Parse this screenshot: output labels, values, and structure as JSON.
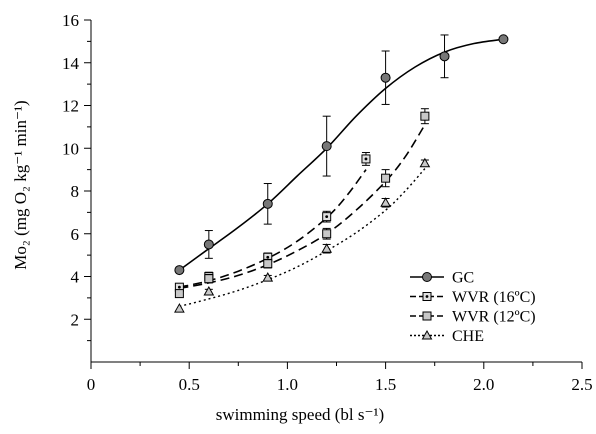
{
  "chart_data": {
    "type": "scatter",
    "x_label": "swimming speed (bl s⁻¹)",
    "y_label": "Mo₂ (mg O₂ kg⁻¹ min⁻¹)",
    "x_range": [
      0,
      2.5
    ],
    "y_range": [
      0,
      16
    ],
    "x_ticks": [
      "0",
      "0.5",
      "1.0",
      "1.5",
      "2.0",
      "2.5"
    ],
    "y_ticks": [
      "2",
      "4",
      "6",
      "8",
      "10",
      "12",
      "14",
      "16"
    ],
    "grid": false,
    "legend_position": "bottom-right",
    "series": [
      {
        "name": "GC",
        "marker": "circle",
        "line_style": "solid",
        "points": [
          {
            "x": 0.45,
            "y": 4.3,
            "err": 0
          },
          {
            "x": 0.6,
            "y": 5.5,
            "err": 0.65
          },
          {
            "x": 0.9,
            "y": 7.4,
            "err": 0.95
          },
          {
            "x": 1.2,
            "y": 10.1,
            "err": 1.4
          },
          {
            "x": 1.5,
            "y": 13.3,
            "err": 1.25
          },
          {
            "x": 1.8,
            "y": 14.3,
            "err": 1.0
          },
          {
            "x": 2.1,
            "y": 15.1,
            "err": 0.1
          }
        ],
        "fit": [
          [
            0.45,
            4.3
          ],
          [
            0.6,
            5.3
          ],
          [
            0.75,
            6.3
          ],
          [
            0.9,
            7.4
          ],
          [
            1.05,
            8.7
          ],
          [
            1.2,
            10.0
          ],
          [
            1.35,
            11.5
          ],
          [
            1.5,
            12.8
          ],
          [
            1.65,
            13.8
          ],
          [
            1.8,
            14.5
          ],
          [
            1.95,
            14.9
          ],
          [
            2.1,
            15.1
          ]
        ]
      },
      {
        "name": "WVR (16ºC)",
        "marker": "square-dot",
        "line_style": "dashed",
        "points": [
          {
            "x": 0.45,
            "y": 3.5,
            "err": 0.15
          },
          {
            "x": 0.6,
            "y": 4.0,
            "err": 0.2
          },
          {
            "x": 0.9,
            "y": 4.9,
            "err": 0.2
          },
          {
            "x": 1.2,
            "y": 6.8,
            "err": 0.25
          },
          {
            "x": 1.4,
            "y": 9.5,
            "err": 0.3
          }
        ],
        "fit": [
          [
            0.45,
            3.5
          ],
          [
            0.6,
            3.8
          ],
          [
            0.75,
            4.25
          ],
          [
            0.9,
            4.85
          ],
          [
            1.05,
            5.65
          ],
          [
            1.2,
            6.75
          ],
          [
            1.3,
            7.75
          ],
          [
            1.4,
            9.0
          ]
        ]
      },
      {
        "name": "WVR (12ºC)",
        "marker": "square",
        "line_style": "dashed",
        "points": [
          {
            "x": 0.45,
            "y": 3.2,
            "err": 0.15
          },
          {
            "x": 0.6,
            "y": 3.9,
            "err": 0.2
          },
          {
            "x": 0.9,
            "y": 4.6,
            "err": 0.2
          },
          {
            "x": 1.2,
            "y": 6.0,
            "err": 0.25
          },
          {
            "x": 1.5,
            "y": 8.6,
            "err": 0.4
          },
          {
            "x": 1.7,
            "y": 11.5,
            "err": 0.35
          }
        ],
        "fit": [
          [
            0.45,
            3.45
          ],
          [
            0.6,
            3.7
          ],
          [
            0.75,
            4.05
          ],
          [
            0.9,
            4.55
          ],
          [
            1.05,
            5.2
          ],
          [
            1.2,
            6.0
          ],
          [
            1.35,
            7.1
          ],
          [
            1.5,
            8.45
          ],
          [
            1.6,
            9.6
          ],
          [
            1.7,
            11.1
          ]
        ]
      },
      {
        "name": "CHE",
        "marker": "triangle",
        "line_style": "dotted",
        "points": [
          {
            "x": 0.45,
            "y": 2.5,
            "err": 0
          },
          {
            "x": 0.6,
            "y": 3.3,
            "err": 0.1
          },
          {
            "x": 0.9,
            "y": 3.95,
            "err": 0.1
          },
          {
            "x": 1.2,
            "y": 5.3,
            "err": 0.2
          },
          {
            "x": 1.5,
            "y": 7.45,
            "err": 0.2
          },
          {
            "x": 1.7,
            "y": 9.3,
            "err": 0.15
          }
        ],
        "fit": [
          [
            0.45,
            2.6
          ],
          [
            0.6,
            2.95
          ],
          [
            0.75,
            3.35
          ],
          [
            0.9,
            3.85
          ],
          [
            1.05,
            4.45
          ],
          [
            1.2,
            5.2
          ],
          [
            1.35,
            6.05
          ],
          [
            1.5,
            7.1
          ],
          [
            1.6,
            8.0
          ],
          [
            1.7,
            9.05
          ]
        ]
      }
    ]
  }
}
